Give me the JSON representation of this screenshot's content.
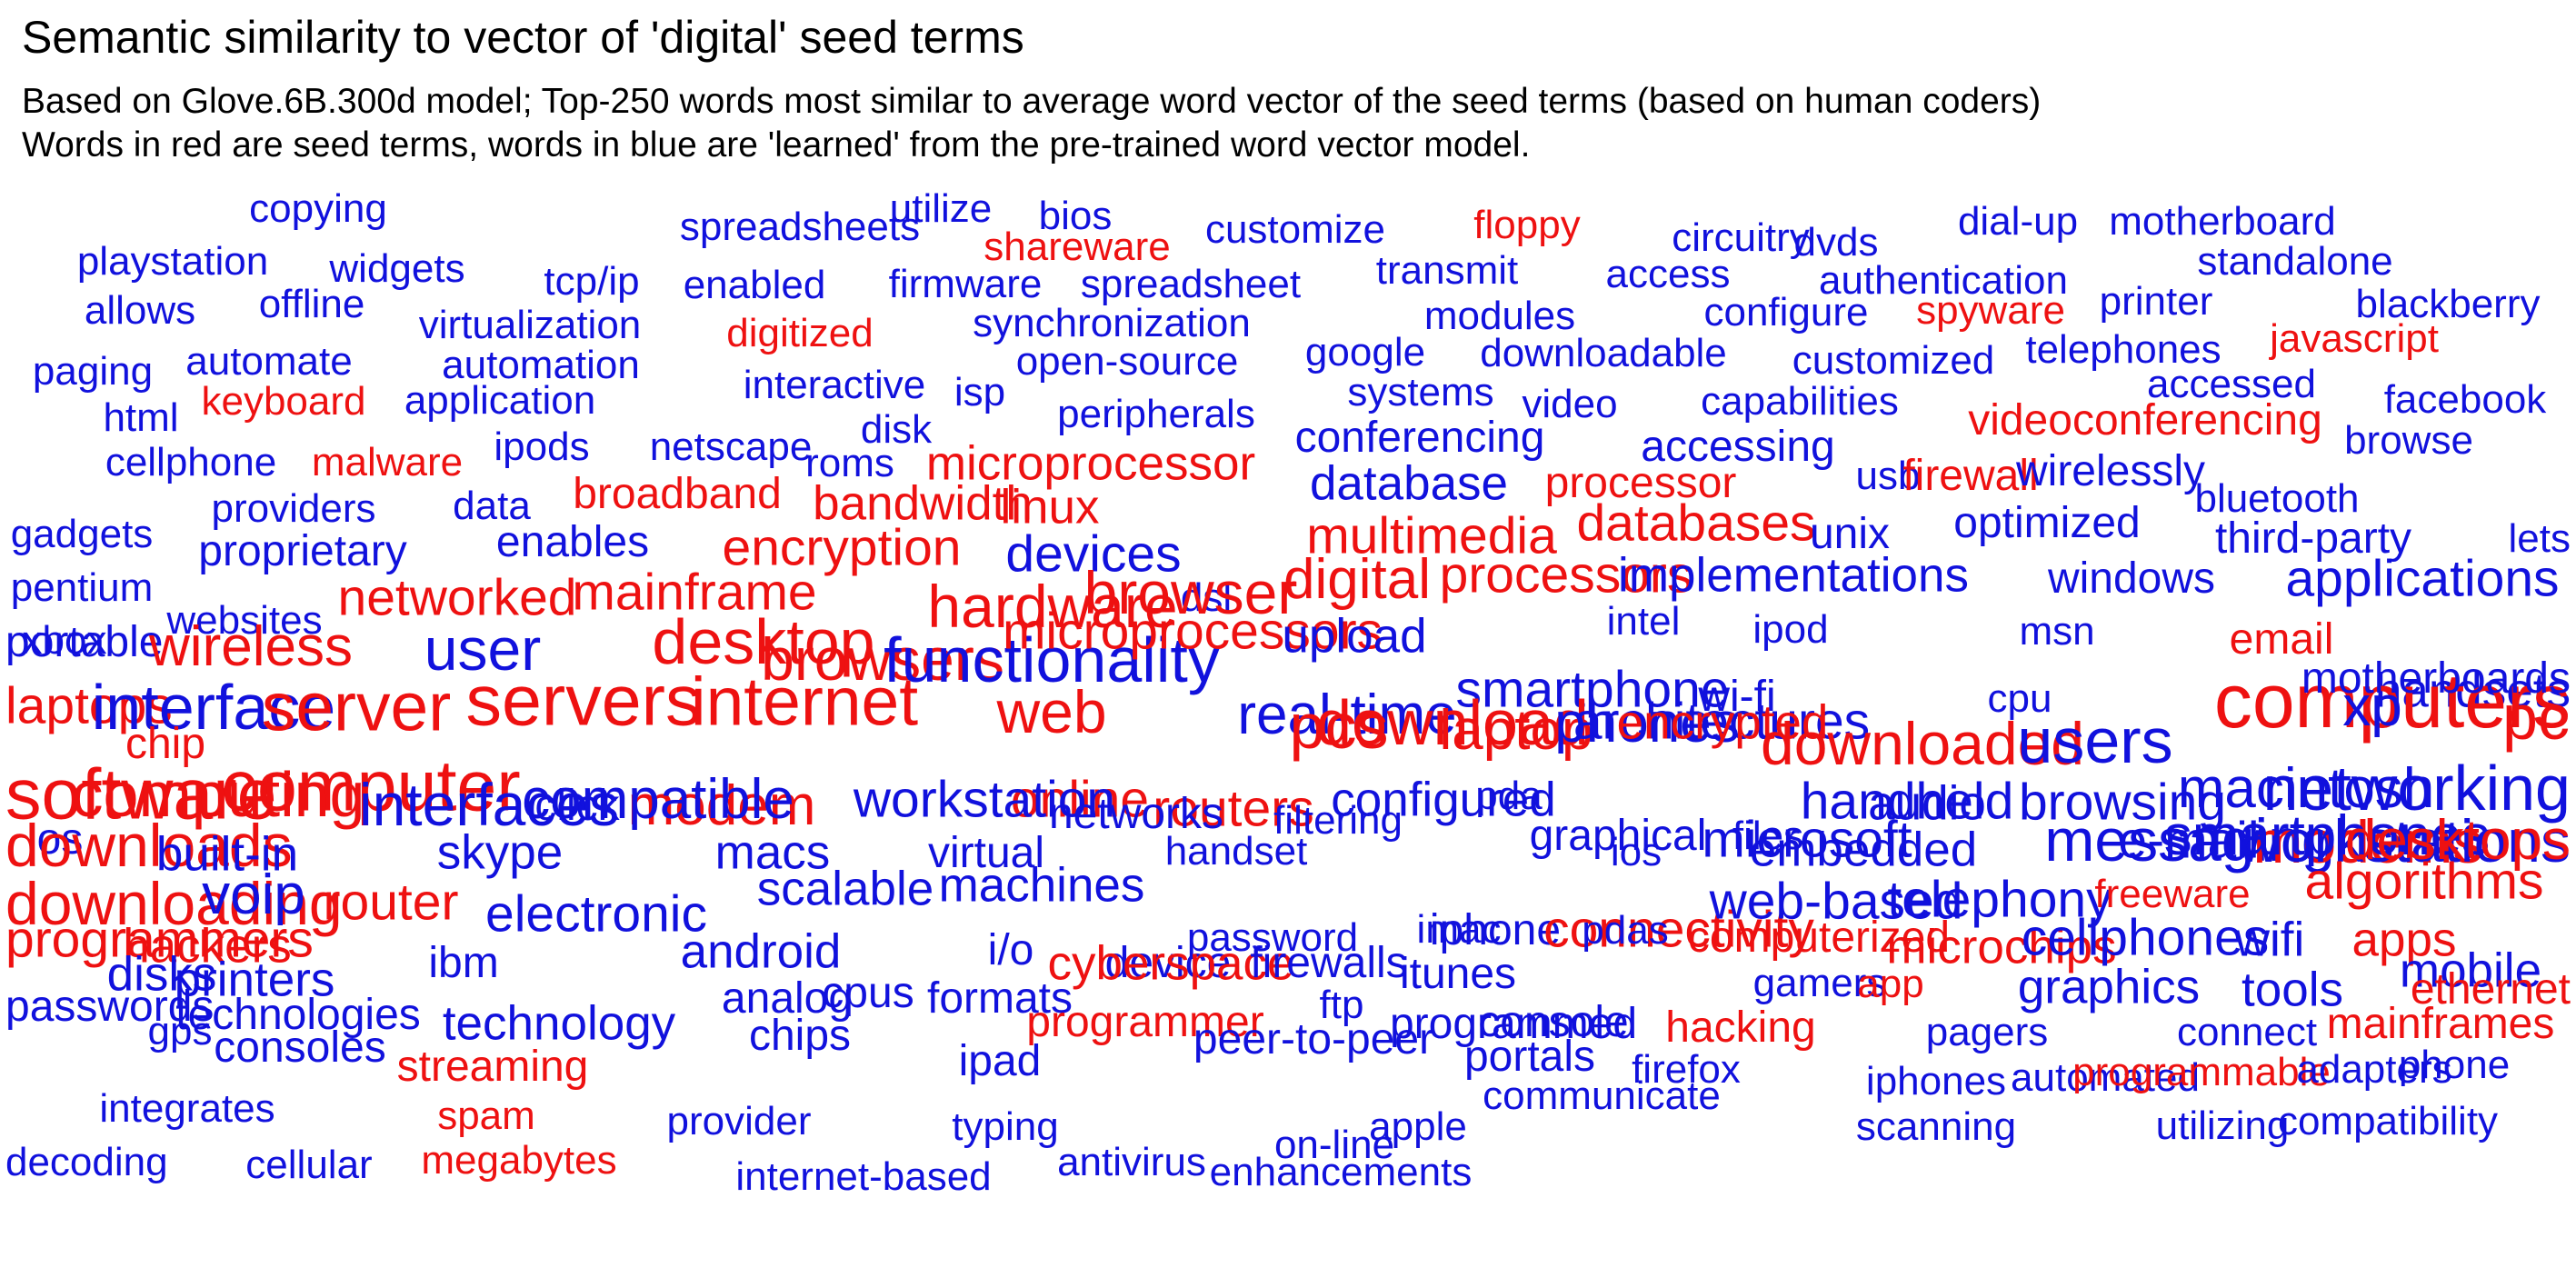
{
  "title": "Semantic similarity to vector of 'digital' seed terms",
  "subtitle_1": "Based on Glove.6B.300d model; Top-250 words most similar to average word vector of the seed terms (based on human coders)",
  "subtitle_2": "Words in red are seed terms, words in blue are 'learned' from the pre-trained word vector model.",
  "colors": {
    "seed": "#ee1111",
    "learned": "#1111dd",
    "text": "#000000"
  },
  "words": [
    {
      "t": "copying",
      "c": "learned",
      "w": 1
    },
    {
      "t": "spreadsheets",
      "c": "learned",
      "w": 1
    },
    {
      "t": "utilize",
      "c": "learned",
      "w": 1
    },
    {
      "t": "bios",
      "c": "learned",
      "w": 1
    },
    {
      "t": "customize",
      "c": "learned",
      "w": 1
    },
    {
      "t": "floppy",
      "c": "seed",
      "w": 1
    },
    {
      "t": "circuitry",
      "c": "learned",
      "w": 1
    },
    {
      "t": "dvds",
      "c": "learned",
      "w": 1
    },
    {
      "t": "dial-up",
      "c": "learned",
      "w": 1
    },
    {
      "t": "motherboard",
      "c": "learned",
      "w": 1
    },
    {
      "t": "playstation",
      "c": "learned",
      "w": 1
    },
    {
      "t": "widgets",
      "c": "learned",
      "w": 1
    },
    {
      "t": "shareware",
      "c": "seed",
      "w": 1
    },
    {
      "t": "tcp/ip",
      "c": "learned",
      "w": 1
    },
    {
      "t": "enabled",
      "c": "learned",
      "w": 1
    },
    {
      "t": "firmware",
      "c": "learned",
      "w": 1
    },
    {
      "t": "spreadsheet",
      "c": "learned",
      "w": 1
    },
    {
      "t": "transmit",
      "c": "learned",
      "w": 1
    },
    {
      "t": "access",
      "c": "learned",
      "w": 1
    },
    {
      "t": "authentication",
      "c": "learned",
      "w": 1
    },
    {
      "t": "standalone",
      "c": "learned",
      "w": 1
    },
    {
      "t": "allows",
      "c": "learned",
      "w": 1
    },
    {
      "t": "offline",
      "c": "learned",
      "w": 1
    },
    {
      "t": "virtualization",
      "c": "learned",
      "w": 1
    },
    {
      "t": "digitized",
      "c": "seed",
      "w": 1
    },
    {
      "t": "synchronization",
      "c": "learned",
      "w": 1
    },
    {
      "t": "modules",
      "c": "learned",
      "w": 1
    },
    {
      "t": "configure",
      "c": "learned",
      "w": 1
    },
    {
      "t": "spyware",
      "c": "seed",
      "w": 1
    },
    {
      "t": "printer",
      "c": "learned",
      "w": 1
    },
    {
      "t": "blackberry",
      "c": "learned",
      "w": 1
    },
    {
      "t": "paging",
      "c": "learned",
      "w": 1
    },
    {
      "t": "automate",
      "c": "learned",
      "w": 1
    },
    {
      "t": "automation",
      "c": "learned",
      "w": 1
    },
    {
      "t": "open-source",
      "c": "learned",
      "w": 1
    },
    {
      "t": "google",
      "c": "learned",
      "w": 1
    },
    {
      "t": "downloadable",
      "c": "learned",
      "w": 1
    },
    {
      "t": "customized",
      "c": "learned",
      "w": 1
    },
    {
      "t": "telephones",
      "c": "learned",
      "w": 1
    },
    {
      "t": "javascript",
      "c": "seed",
      "w": 1
    },
    {
      "t": "html",
      "c": "learned",
      "w": 1
    },
    {
      "t": "keyboard",
      "c": "seed",
      "w": 1
    },
    {
      "t": "application",
      "c": "learned",
      "w": 1
    },
    {
      "t": "interactive",
      "c": "learned",
      "w": 1
    },
    {
      "t": "isp",
      "c": "learned",
      "w": 1
    },
    {
      "t": "peripherals",
      "c": "learned",
      "w": 1
    },
    {
      "t": "systems",
      "c": "learned",
      "w": 1
    },
    {
      "t": "video",
      "c": "learned",
      "w": 1
    },
    {
      "t": "capabilities",
      "c": "learned",
      "w": 1
    },
    {
      "t": "accessed",
      "c": "learned",
      "w": 1
    },
    {
      "t": "facebook",
      "c": "learned",
      "w": 1
    },
    {
      "t": "cellphone",
      "c": "learned",
      "w": 1
    },
    {
      "t": "malware",
      "c": "seed",
      "w": 1
    },
    {
      "t": "ipods",
      "c": "learned",
      "w": 1
    },
    {
      "t": "netscape",
      "c": "learned",
      "w": 1
    },
    {
      "t": "disk",
      "c": "learned",
      "w": 1
    },
    {
      "t": "roms",
      "c": "learned",
      "w": 1
    },
    {
      "t": "microprocessor",
      "c": "seed",
      "w": 1.2
    },
    {
      "t": "conferencing",
      "c": "learned",
      "w": 1.1
    },
    {
      "t": "accessing",
      "c": "learned",
      "w": 1.1
    },
    {
      "t": "videoconferencing",
      "c": "seed",
      "w": 1.1
    },
    {
      "t": "browse",
      "c": "learned",
      "w": 1
    },
    {
      "t": "gadgets",
      "c": "learned",
      "w": 1
    },
    {
      "t": "providers",
      "c": "learned",
      "w": 1
    },
    {
      "t": "data",
      "c": "learned",
      "w": 1
    },
    {
      "t": "broadband",
      "c": "seed",
      "w": 1.1
    },
    {
      "t": "bandwidth",
      "c": "seed",
      "w": 1.2
    },
    {
      "t": "linux",
      "c": "seed",
      "w": 1.2
    },
    {
      "t": "database",
      "c": "learned",
      "w": 1.2
    },
    {
      "t": "processor",
      "c": "seed",
      "w": 1.1
    },
    {
      "t": "usb",
      "c": "learned",
      "w": 1
    },
    {
      "t": "firewall",
      "c": "seed",
      "w": 1.1
    },
    {
      "t": "wirelessly",
      "c": "learned",
      "w": 1.1
    },
    {
      "t": "bluetooth",
      "c": "learned",
      "w": 1
    },
    {
      "t": "lets",
      "c": "learned",
      "w": 1
    },
    {
      "t": "pentium",
      "c": "learned",
      "w": 1
    },
    {
      "t": "proprietary",
      "c": "learned",
      "w": 1.1
    },
    {
      "t": "enables",
      "c": "learned",
      "w": 1.1
    },
    {
      "t": "encryption",
      "c": "seed",
      "w": 1.3
    },
    {
      "t": "devices",
      "c": "learned",
      "w": 1.3
    },
    {
      "t": "multimedia",
      "c": "seed",
      "w": 1.3
    },
    {
      "t": "databases",
      "c": "seed",
      "w": 1.3
    },
    {
      "t": "unix",
      "c": "learned",
      "w": 1.1
    },
    {
      "t": "optimized",
      "c": "learned",
      "w": 1.1
    },
    {
      "t": "third-party",
      "c": "learned",
      "w": 1.1
    },
    {
      "t": "xbox",
      "c": "learned",
      "w": 1
    },
    {
      "t": "websites",
      "c": "learned",
      "w": 1
    },
    {
      "t": "networked",
      "c": "seed",
      "w": 1.3
    },
    {
      "t": "mainframe",
      "c": "seed",
      "w": 1.3
    },
    {
      "t": "hardware",
      "c": "seed",
      "w": 1.5
    },
    {
      "t": "dsl",
      "c": "learned",
      "w": 1
    },
    {
      "t": "browser",
      "c": "seed",
      "w": 1.5
    },
    {
      "t": "digital",
      "c": "seed",
      "w": 1.4
    },
    {
      "t": "processors",
      "c": "seed",
      "w": 1.3
    },
    {
      "t": "implementations",
      "c": "learned",
      "w": 1.2
    },
    {
      "t": "windows",
      "c": "learned",
      "w": 1.1
    },
    {
      "t": "applications",
      "c": "learned",
      "w": 1.3
    },
    {
      "t": "portable",
      "c": "learned",
      "w": 1.1
    },
    {
      "t": "wireless",
      "c": "seed",
      "w": 1.4
    },
    {
      "t": "user",
      "c": "learned",
      "w": 1.5
    },
    {
      "t": "desktop",
      "c": "seed",
      "w": 1.6
    },
    {
      "t": "browsers",
      "c": "seed",
      "w": 1.5
    },
    {
      "t": "functionality",
      "c": "learned",
      "w": 1.6
    },
    {
      "t": "microprocessors",
      "c": "seed",
      "w": 1.3
    },
    {
      "t": "upload",
      "c": "learned",
      "w": 1.2
    },
    {
      "t": "intel",
      "c": "learned",
      "w": 1
    },
    {
      "t": "ipod",
      "c": "learned",
      "w": 1
    },
    {
      "t": "msn",
      "c": "learned",
      "w": 1
    },
    {
      "t": "email",
      "c": "seed",
      "w": 1.1
    },
    {
      "t": "handsets",
      "c": "learned",
      "w": 1.2
    },
    {
      "t": "laptops",
      "c": "seed",
      "w": 1.3
    },
    {
      "t": "interface",
      "c": "learned",
      "w": 1.6
    },
    {
      "t": "server",
      "c": "seed",
      "w": 1.7
    },
    {
      "t": "servers",
      "c": "seed",
      "w": 1.8
    },
    {
      "t": "internet",
      "c": "seed",
      "w": 1.7
    },
    {
      "t": "web",
      "c": "seed",
      "w": 1.5
    },
    {
      "t": "real-time",
      "c": "learned",
      "w": 1.4
    },
    {
      "t": "smartphone",
      "c": "learned",
      "w": 1.3
    },
    {
      "t": "wi-fi",
      "c": "learned",
      "w": 1.1
    },
    {
      "t": "cpu",
      "c": "learned",
      "w": 1
    },
    {
      "t": "computers",
      "c": "seed",
      "w": 1.9
    },
    {
      "t": "motherboards",
      "c": "learned",
      "w": 1.1
    },
    {
      "t": "chip",
      "c": "seed",
      "w": 1.1
    },
    {
      "t": "pcs",
      "c": "seed",
      "w": 1.6
    },
    {
      "t": "download",
      "c": "seed",
      "w": 1.6
    },
    {
      "t": "laptop",
      "c": "seed",
      "w": 1.4
    },
    {
      "t": "phones",
      "c": "learned",
      "w": 1.4
    },
    {
      "t": "architectures",
      "c": "learned",
      "w": 1.3
    },
    {
      "t": "encrypted",
      "c": "seed",
      "w": 1.2
    },
    {
      "t": "downloaded",
      "c": "seed",
      "w": 1.5
    },
    {
      "t": "users",
      "c": "learned",
      "w": 1.6
    },
    {
      "t": "xp",
      "c": "learned",
      "w": 1.4
    },
    {
      "t": "pc",
      "c": "seed",
      "w": 1.6
    },
    {
      "t": "software",
      "c": "seed",
      "w": 1.8
    },
    {
      "t": "computer",
      "c": "seed",
      "w": 1.8
    },
    {
      "t": "click",
      "c": "learned",
      "w": 1.1
    },
    {
      "t": "modem",
      "c": "seed",
      "w": 1.4
    },
    {
      "t": "online",
      "c": "seed",
      "w": 1.3
    },
    {
      "t": "routers",
      "c": "seed",
      "w": 1.3
    },
    {
      "t": "configured",
      "c": "learned",
      "w": 1.2
    },
    {
      "t": "pda",
      "c": "learned",
      "w": 1
    },
    {
      "t": "files",
      "c": "learned",
      "w": 1
    },
    {
      "t": "audio",
      "c": "learned",
      "w": 1.2
    },
    {
      "t": "browsing",
      "c": "learned",
      "w": 1.3
    },
    {
      "t": "macintosh",
      "c": "learned",
      "w": 1.4
    },
    {
      "t": "networking",
      "c": "learned",
      "w": 1.6
    },
    {
      "t": "os",
      "c": "learned",
      "w": 1.1
    },
    {
      "t": "computing",
      "c": "seed",
      "w": 1.6
    },
    {
      "t": "interfaces",
      "c": "learned",
      "w": 1.5
    },
    {
      "t": "compatible",
      "c": "learned",
      "w": 1.4
    },
    {
      "t": "workstation",
      "c": "learned",
      "w": 1.3
    },
    {
      "t": "networks",
      "c": "learned",
      "w": 1.1
    },
    {
      "t": "filtering",
      "c": "learned",
      "w": 1
    },
    {
      "t": "graphical",
      "c": "learned",
      "w": 1.1
    },
    {
      "t": "microsoft",
      "c": "learned",
      "w": 1.3
    },
    {
      "t": "handheld",
      "c": "learned",
      "w": 1.3
    },
    {
      "t": "messaging",
      "c": "learned",
      "w": 1.5
    },
    {
      "t": "modems",
      "c": "seed",
      "w": 1.5
    },
    {
      "t": "workstations",
      "c": "learned",
      "w": 1.5
    },
    {
      "t": "downloads",
      "c": "seed",
      "w": 1.5
    },
    {
      "t": "built-in",
      "c": "learned",
      "w": 1.2
    },
    {
      "t": "skype",
      "c": "learned",
      "w": 1.2
    },
    {
      "t": "macs",
      "c": "learned",
      "w": 1.2
    },
    {
      "t": "virtual",
      "c": "learned",
      "w": 1.1
    },
    {
      "t": "handset",
      "c": "learned",
      "w": 1
    },
    {
      "t": "ios",
      "c": "learned",
      "w": 1
    },
    {
      "t": "embedded",
      "c": "learned",
      "w": 1.2
    },
    {
      "t": "e-mail",
      "c": "learned",
      "w": 1.3
    },
    {
      "t": "smartphones",
      "c": "learned",
      "w": 1.4
    },
    {
      "t": "desktops",
      "c": "seed",
      "w": 1.4
    },
    {
      "t": "downloading",
      "c": "seed",
      "w": 1.5
    },
    {
      "t": "voip",
      "c": "learned",
      "w": 1.4
    },
    {
      "t": "router",
      "c": "seed",
      "w": 1.3
    },
    {
      "t": "electronic",
      "c": "learned",
      "w": 1.3
    },
    {
      "t": "scalable",
      "c": "learned",
      "w": 1.2
    },
    {
      "t": "machines",
      "c": "learned",
      "w": 1.2
    },
    {
      "t": "password",
      "c": "learned",
      "w": 1
    },
    {
      "t": "iphone",
      "c": "learned",
      "w": 1.1
    },
    {
      "t": "connectivity",
      "c": "seed",
      "w": 1.3
    },
    {
      "t": "web-based",
      "c": "learned",
      "w": 1.3
    },
    {
      "t": "telephony",
      "c": "learned",
      "w": 1.3
    },
    {
      "t": "freeware",
      "c": "seed",
      "w": 1
    },
    {
      "t": "algorithms",
      "c": "seed",
      "w": 1.3
    },
    {
      "t": "programmers",
      "c": "seed",
      "w": 1.3
    },
    {
      "t": "hackers",
      "c": "seed",
      "w": 1.2
    },
    {
      "t": "ibm",
      "c": "learned",
      "w": 1.1
    },
    {
      "t": "android",
      "c": "learned",
      "w": 1.2
    },
    {
      "t": "i/o",
      "c": "learned",
      "w": 1.1
    },
    {
      "t": "device",
      "c": "learned",
      "w": 1.1
    },
    {
      "t": "imac",
      "c": "learned",
      "w": 1
    },
    {
      "t": "pdas",
      "c": "learned",
      "w": 1
    },
    {
      "t": "computerized",
      "c": "seed",
      "w": 1.1
    },
    {
      "t": "microchips",
      "c": "seed",
      "w": 1.2
    },
    {
      "t": "cellphones",
      "c": "learned",
      "w": 1.3
    },
    {
      "t": "wifi",
      "c": "learned",
      "w": 1.2
    },
    {
      "t": "apps",
      "c": "seed",
      "w": 1.2
    },
    {
      "t": "disks",
      "c": "learned",
      "w": 1.2
    },
    {
      "t": "printers",
      "c": "learned",
      "w": 1.2
    },
    {
      "t": "cyberspace",
      "c": "seed",
      "w": 1.2
    },
    {
      "t": "firewalls",
      "c": "learned",
      "w": 1.1
    },
    {
      "t": "itunes",
      "c": "learned",
      "w": 1.1
    },
    {
      "t": "gamers",
      "c": "learned",
      "w": 1
    },
    {
      "t": "app",
      "c": "seed",
      "w": 1
    },
    {
      "t": "graphics",
      "c": "learned",
      "w": 1.2
    },
    {
      "t": "tools",
      "c": "learned",
      "w": 1.2
    },
    {
      "t": "mobile",
      "c": "learned",
      "w": 1.2
    },
    {
      "t": "ethernet",
      "c": "seed",
      "w": 1.1
    },
    {
      "t": "passwords",
      "c": "learned",
      "w": 1.1
    },
    {
      "t": "technologies",
      "c": "learned",
      "w": 1.1
    },
    {
      "t": "technology",
      "c": "learned",
      "w": 1.2
    },
    {
      "t": "analog",
      "c": "learned",
      "w": 1.1
    },
    {
      "t": "cpus",
      "c": "learned",
      "w": 1.1
    },
    {
      "t": "formats",
      "c": "learned",
      "w": 1.1
    },
    {
      "t": "programmer",
      "c": "seed",
      "w": 1.1
    },
    {
      "t": "ftp",
      "c": "learned",
      "w": 1
    },
    {
      "t": "console",
      "c": "learned",
      "w": 1.1
    },
    {
      "t": "hacking",
      "c": "seed",
      "w": 1.1
    },
    {
      "t": "pagers",
      "c": "learned",
      "w": 1
    },
    {
      "t": "connect",
      "c": "learned",
      "w": 1
    },
    {
      "t": "mainframes",
      "c": "seed",
      "w": 1.1
    },
    {
      "t": "gps",
      "c": "learned",
      "w": 1
    },
    {
      "t": "consoles",
      "c": "learned",
      "w": 1.1
    },
    {
      "t": "streaming",
      "c": "seed",
      "w": 1.1
    },
    {
      "t": "chips",
      "c": "learned",
      "w": 1.1
    },
    {
      "t": "ipad",
      "c": "learned",
      "w": 1.1
    },
    {
      "t": "peer-to-peer",
      "c": "learned",
      "w": 1.1
    },
    {
      "t": "programmed",
      "c": "learned",
      "w": 1.1
    },
    {
      "t": "portals",
      "c": "learned",
      "w": 1.1
    },
    {
      "t": "firefox",
      "c": "learned",
      "w": 1
    },
    {
      "t": "iphones",
      "c": "learned",
      "w": 1
    },
    {
      "t": "automated",
      "c": "learned",
      "w": 1
    },
    {
      "t": "programmable",
      "c": "seed",
      "w": 1
    },
    {
      "t": "adapters",
      "c": "learned",
      "w": 1
    },
    {
      "t": "phone",
      "c": "learned",
      "w": 1
    },
    {
      "t": "integrates",
      "c": "learned",
      "w": 1
    },
    {
      "t": "spam",
      "c": "seed",
      "w": 1
    },
    {
      "t": "provider",
      "c": "learned",
      "w": 1
    },
    {
      "t": "typing",
      "c": "learned",
      "w": 1
    },
    {
      "t": "on-line",
      "c": "learned",
      "w": 1
    },
    {
      "t": "apple",
      "c": "learned",
      "w": 1
    },
    {
      "t": "communicate",
      "c": "learned",
      "w": 1
    },
    {
      "t": "scanning",
      "c": "learned",
      "w": 1
    },
    {
      "t": "utilizing",
      "c": "learned",
      "w": 1
    },
    {
      "t": "compatibility",
      "c": "learned",
      "w": 1
    },
    {
      "t": "decoding",
      "c": "learned",
      "w": 1
    },
    {
      "t": "cellular",
      "c": "learned",
      "w": 1
    },
    {
      "t": "megabytes",
      "c": "seed",
      "w": 1
    },
    {
      "t": "internet-based",
      "c": "learned",
      "w": 1
    },
    {
      "t": "antivirus",
      "c": "learned",
      "w": 1
    },
    {
      "t": "enhancements",
      "c": "learned",
      "w": 1
    }
  ]
}
